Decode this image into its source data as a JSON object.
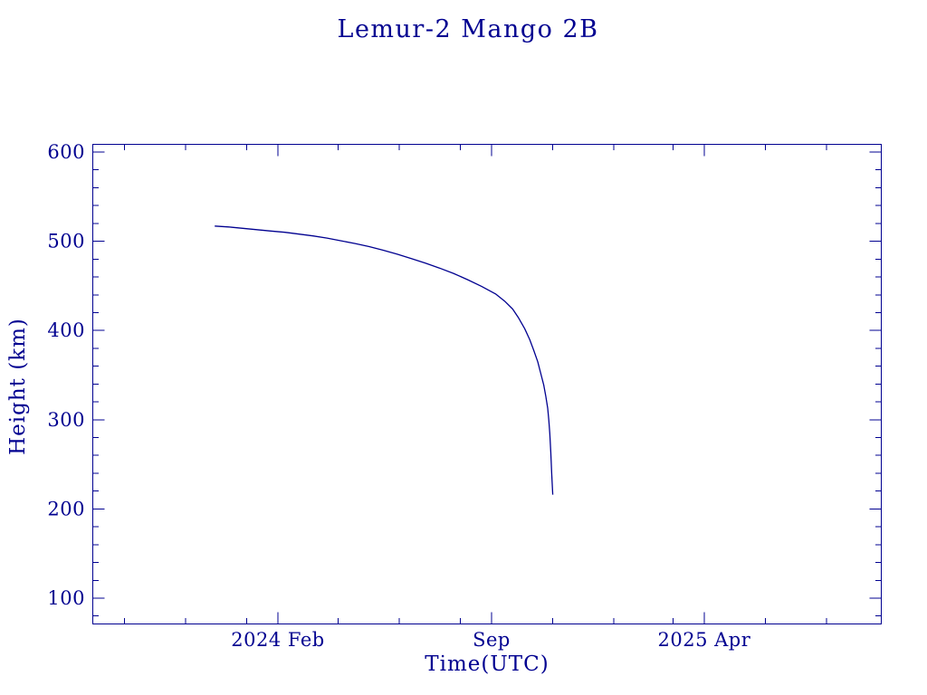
{
  "chart_data": {
    "type": "line",
    "title": "Lemur-2 Mango 2B",
    "xlabel": "Time(UTC)",
    "ylabel": "Height (km)",
    "line_color": "#000090",
    "background_color": "#ffffff",
    "ylim": [
      72,
      608
    ],
    "y_ticks": {
      "major_values": [
        100,
        200,
        300,
        400,
        500,
        600
      ],
      "minor_step": 20,
      "minor_range": [
        80,
        580
      ]
    },
    "x_ticks": {
      "major": [
        {
          "date": "2024-02-01",
          "label": "2024 Feb"
        },
        {
          "date": "2024-09-01",
          "label": "Sep"
        },
        {
          "date": "2025-04-01",
          "label": "2025 Apr"
        }
      ],
      "minor_dates": [
        "2023-09-01",
        "2023-11-01",
        "2024-01-01",
        "2024-04-01",
        "2024-06-01",
        "2024-08-01",
        "2024-11-01",
        "2025-01-01",
        "2025-03-01",
        "2025-06-01",
        "2025-08-01"
      ],
      "x_range": [
        "2023-08-01",
        "2025-09-24"
      ]
    },
    "series": [
      {
        "name": "height_km",
        "points": [
          [
            "2023-11-30",
            517
          ],
          [
            "2023-12-14",
            516
          ],
          [
            "2023-12-28",
            514.5
          ],
          [
            "2024-01-11",
            513
          ],
          [
            "2024-01-25",
            511.5
          ],
          [
            "2024-02-08",
            510
          ],
          [
            "2024-02-22",
            508
          ],
          [
            "2024-03-07",
            506
          ],
          [
            "2024-03-21",
            503.5
          ],
          [
            "2024-04-04",
            500.5
          ],
          [
            "2024-04-18",
            497.5
          ],
          [
            "2024-05-02",
            494
          ],
          [
            "2024-05-16",
            490
          ],
          [
            "2024-05-30",
            485.5
          ],
          [
            "2024-06-13",
            480.5
          ],
          [
            "2024-06-27",
            475.5
          ],
          [
            "2024-07-11",
            470
          ],
          [
            "2024-07-25",
            464
          ],
          [
            "2024-08-08",
            457
          ],
          [
            "2024-08-22",
            449.5
          ],
          [
            "2024-09-05",
            441
          ],
          [
            "2024-09-14",
            433
          ],
          [
            "2024-09-22",
            424
          ],
          [
            "2024-09-28",
            414
          ],
          [
            "2024-10-04",
            402
          ],
          [
            "2024-10-09",
            390
          ],
          [
            "2024-10-13",
            378
          ],
          [
            "2024-10-17",
            365
          ],
          [
            "2024-10-20",
            352
          ],
          [
            "2024-10-23",
            339
          ],
          [
            "2024-10-25",
            327
          ],
          [
            "2024-10-27",
            313
          ],
          [
            "2024-10-28",
            300
          ],
          [
            "2024-10-29",
            285
          ],
          [
            "2024-10-30",
            264
          ],
          [
            "2024-10-31",
            238
          ],
          [
            "2024-11-01",
            216
          ]
        ]
      }
    ]
  }
}
